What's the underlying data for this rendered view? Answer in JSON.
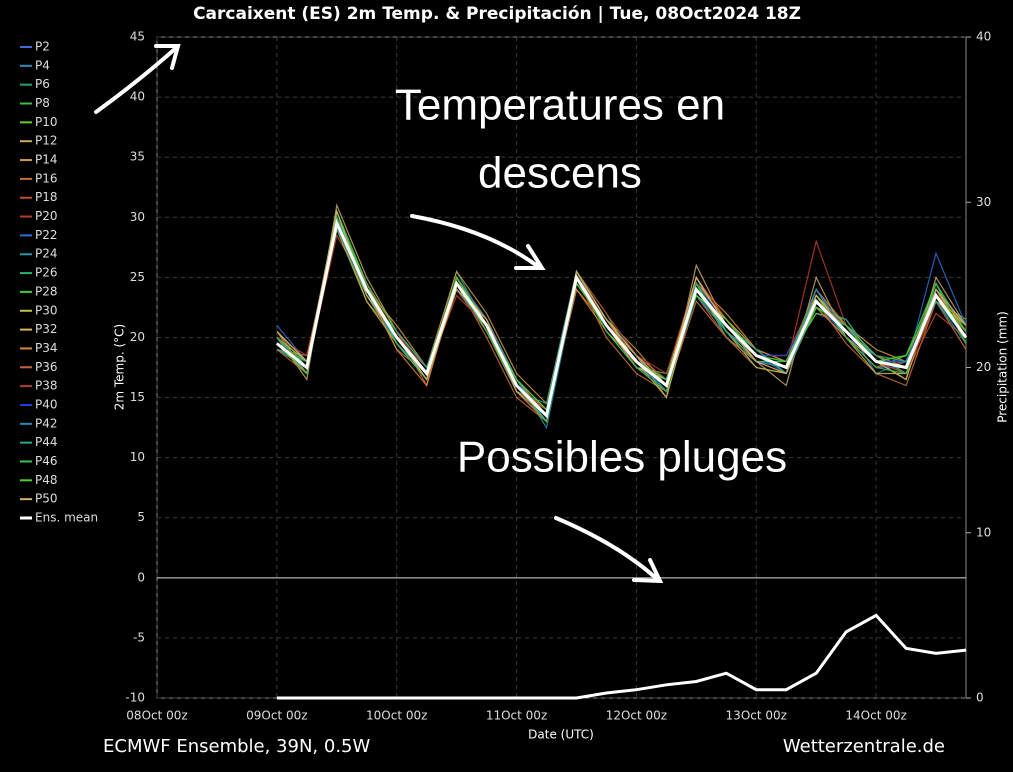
{
  "chart_data": {
    "type": "line",
    "title": "Carcaixent  (ES)  2m Temp. & Precipitación | Tue, 08Oct2024 18Z",
    "ylabel": "2m Temp. (°C)",
    "y2label": "Precipitation (mm)",
    "xlabel": "Date (UTC)",
    "footer_left": "ECMWF Ensemble, 39N, 0.5W",
    "footer_right": "Wetterzentrale.de",
    "annotations": [
      "Temperatures en",
      "descens",
      "Possibles pluges"
    ],
    "xlim": [
      0,
      162
    ],
    "xticks": [
      {
        "value": 0,
        "label": "08Oct 00z"
      },
      {
        "value": 24,
        "label": "09Oct 00z"
      },
      {
        "value": 48,
        "label": "10Oct 00z"
      },
      {
        "value": 72,
        "label": "11Oct 00z"
      },
      {
        "value": 96,
        "label": "12Oct 00z"
      },
      {
        "value": 120,
        "label": "13Oct 00z"
      },
      {
        "value": 144,
        "label": "14Oct 00z"
      }
    ],
    "ylim": [
      -10,
      45
    ],
    "yticks": [
      -10,
      -5,
      0,
      5,
      10,
      15,
      20,
      25,
      30,
      35,
      40,
      45
    ],
    "y2lim": [
      0,
      40
    ],
    "y2ticks": [
      0,
      10,
      20,
      30,
      40
    ],
    "grid": true,
    "x": [
      24,
      30,
      36,
      42,
      48,
      54,
      60,
      66,
      72,
      78,
      84,
      90,
      96,
      102,
      108,
      114,
      120,
      126,
      132,
      138,
      144,
      150,
      156,
      162
    ],
    "series": [
      {
        "name": "P2",
        "color": "#3b6fd6",
        "values": [
          20,
          17,
          30,
          24.5,
          19.5,
          16.5,
          25,
          21.5,
          15.5,
          13,
          25.5,
          21,
          17.5,
          16.5,
          24.5,
          20,
          18,
          18,
          22,
          21,
          17,
          18,
          24,
          21
        ]
      },
      {
        "name": "P4",
        "color": "#2e8bc0",
        "values": [
          19,
          18,
          29,
          23.5,
          20.5,
          17.5,
          24,
          20.5,
          16.5,
          14,
          24.5,
          21.5,
          18.5,
          15.5,
          23.5,
          21.5,
          19,
          17,
          24,
          20,
          18.5,
          17,
          23,
          20.5
        ]
      },
      {
        "name": "P6",
        "color": "#2aa07a",
        "values": [
          20.5,
          17.5,
          30.5,
          24,
          19,
          17,
          25.5,
          21,
          16,
          13.5,
          25,
          20.5,
          18,
          16,
          25,
          20.5,
          18,
          17.5,
          22.5,
          21,
          18,
          18,
          24.5,
          19.5
        ]
      },
      {
        "name": "P8",
        "color": "#3fbf3f",
        "values": [
          19.5,
          18,
          29.5,
          24.5,
          20,
          16.5,
          24.5,
          21.5,
          16.5,
          13,
          25.5,
          22,
          17.5,
          17,
          24,
          21,
          19,
          17,
          23.5,
          20,
          17.5,
          18.5,
          23,
          21.5
        ]
      },
      {
        "name": "P10",
        "color": "#66d11f",
        "values": [
          19,
          17.5,
          29,
          23.5,
          19.5,
          17,
          24,
          21,
          15.5,
          14,
          24.5,
          21,
          18,
          16.5,
          23.5,
          20.5,
          18.5,
          18,
          22,
          21.5,
          18,
          17,
          24,
          20
        ]
      },
      {
        "name": "P12",
        "color": "#c8a968",
        "values": [
          20,
          16.5,
          31,
          25,
          20.5,
          16,
          25,
          21,
          16,
          13.5,
          24,
          21,
          18.5,
          15,
          26,
          21,
          18,
          16,
          25,
          20,
          18,
          16.5,
          25,
          21
        ]
      },
      {
        "name": "P14",
        "color": "#d39a3c",
        "values": [
          20.5,
          17,
          30,
          24,
          21,
          17.5,
          25.5,
          22,
          17,
          14.5,
          25.5,
          21.5,
          19,
          16,
          24.5,
          22,
          19,
          18,
          24,
          21,
          19,
          18,
          24,
          20.5
        ]
      },
      {
        "name": "P16",
        "color": "#c9703a",
        "values": [
          19,
          18.5,
          29.5,
          23,
          20,
          16.5,
          24.5,
          20,
          15,
          13,
          25,
          20,
          17,
          15.5,
          23,
          20,
          17.5,
          17,
          23,
          19.5,
          17,
          16,
          23,
          19
        ]
      },
      {
        "name": "P18",
        "color": "#c24a2e",
        "values": [
          20,
          17.5,
          28.5,
          24,
          19,
          17,
          23.5,
          21,
          16.5,
          13.5,
          24,
          21,
          18,
          16.5,
          24,
          21,
          18.5,
          18.5,
          23.5,
          20.5,
          18.5,
          17,
          22,
          20
        ]
      },
      {
        "name": "P20",
        "color": "#b83a2a",
        "values": [
          19.5,
          17,
          29,
          24.5,
          20.5,
          16,
          25,
          21.5,
          15.5,
          14,
          25.5,
          22,
          18.5,
          17,
          25,
          21.5,
          18,
          17.5,
          28,
          21,
          18,
          17.5,
          23.5,
          20.5
        ]
      },
      {
        "name": "P22",
        "color": "#2f6fd0",
        "values": [
          21,
          18,
          30,
          24,
          20,
          17.5,
          24.5,
          20.5,
          16,
          13,
          25,
          21,
          17.5,
          16,
          24,
          20.5,
          18.5,
          17,
          23,
          20,
          17.5,
          17.5,
          27,
          21
        ]
      },
      {
        "name": "P24",
        "color": "#2796a6",
        "values": [
          19,
          17.5,
          30,
          23.5,
          19.5,
          17,
          24,
          21,
          16.5,
          12.5,
          24.5,
          21.5,
          18,
          15.5,
          23.5,
          21,
          19,
          18,
          22.5,
          21.5,
          18,
          18,
          23,
          19.5
        ]
      },
      {
        "name": "P26",
        "color": "#2bb36a",
        "values": [
          20,
          17,
          29.5,
          24,
          20,
          16.5,
          25,
          21,
          16,
          14,
          25,
          20.5,
          17.5,
          16.5,
          24.5,
          20,
          18,
          17.5,
          23,
          20.5,
          18.5,
          17,
          24,
          20
        ]
      },
      {
        "name": "P28",
        "color": "#3ccf3c",
        "values": [
          19.5,
          17.5,
          30.5,
          24.5,
          20.5,
          17.5,
          24.5,
          21.5,
          16.5,
          13.5,
          25.5,
          21,
          18.5,
          16,
          23.5,
          21.5,
          18.5,
          18,
          23.5,
          21,
          18,
          18.5,
          24.5,
          20.5
        ]
      },
      {
        "name": "P30",
        "color": "#bfc24a",
        "values": [
          20,
          18,
          29,
          23,
          19.5,
          16.5,
          25,
          20.5,
          15.5,
          13,
          24.5,
          21.5,
          18,
          15,
          24,
          20.5,
          17.5,
          17,
          22.5,
          20,
          17,
          17,
          23,
          21
        ]
      },
      {
        "name": "P32",
        "color": "#d8b45a",
        "values": [
          19.5,
          17,
          30,
          24.5,
          20,
          17,
          24,
          21,
          16,
          14,
          25,
          21,
          17.5,
          16.5,
          25,
          21,
          18.5,
          17.5,
          23,
          20.5,
          18,
          16.5,
          24,
          20
        ]
      },
      {
        "name": "P34",
        "color": "#d98a2f",
        "values": [
          20.5,
          18,
          29.5,
          24,
          19,
          16,
          24.5,
          21.5,
          16.5,
          13.5,
          24,
          20.5,
          18,
          16,
          24.5,
          21.5,
          19,
          18,
          23.5,
          21,
          18.5,
          17.5,
          23.5,
          21
        ]
      },
      {
        "name": "P36",
        "color": "#c9613a",
        "values": [
          19,
          17,
          30,
          23.5,
          20.5,
          17,
          25,
          21,
          15.5,
          13,
          25.5,
          21,
          18.5,
          16.5,
          23.5,
          20,
          18,
          17,
          22.5,
          20,
          17.5,
          18,
          24,
          19.5
        ]
      },
      {
        "name": "P38",
        "color": "#b3402e",
        "values": [
          20,
          18.5,
          29,
          24.5,
          20,
          17.5,
          24,
          20.5,
          16,
          14,
          25,
          21.5,
          17.5,
          15.5,
          24,
          21,
          18.5,
          18.5,
          23,
          21,
          18,
          17,
          23,
          20.5
        ]
      },
      {
        "name": "P40",
        "color": "#1f3fd8",
        "values": [
          19.5,
          17.5,
          29.5,
          24,
          20,
          17,
          24.5,
          21,
          16,
          13.5,
          25,
          21,
          18,
          16,
          24.5,
          21,
          18.5,
          18.5,
          23,
          20.5,
          18,
          18,
          23.5,
          20
        ]
      },
      {
        "name": "P42",
        "color": "#2a86b8",
        "values": [
          20,
          17,
          30,
          24,
          19.5,
          16.5,
          25,
          21.5,
          16.5,
          13,
          24.5,
          21,
          18,
          16.5,
          23.5,
          20.5,
          18,
          17.5,
          24,
          20.5,
          18,
          17.5,
          24,
          21
        ]
      },
      {
        "name": "P44",
        "color": "#28a88c",
        "values": [
          19,
          18,
          29,
          23.5,
          20.5,
          17.5,
          24,
          21,
          15.5,
          14.5,
          25.5,
          21.5,
          18.5,
          16,
          24,
          21,
          19,
          17,
          22.5,
          21,
          18.5,
          18,
          23,
          20
        ]
      },
      {
        "name": "P46",
        "color": "#34c34f",
        "values": [
          20,
          17.5,
          30,
          24.5,
          19.5,
          16.5,
          24.5,
          20.5,
          16,
          13,
          25,
          20.5,
          17.5,
          15.5,
          24.5,
          20.5,
          18,
          18,
          23.5,
          20,
          17.5,
          17,
          24.5,
          19.5
        ]
      },
      {
        "name": "P48",
        "color": "#4fd12a",
        "values": [
          19.5,
          17,
          29.5,
          24,
          20,
          17,
          25,
          21,
          16.5,
          14,
          24.5,
          21,
          18,
          16.5,
          23.5,
          21.5,
          18.5,
          17.5,
          22.5,
          21,
          18,
          18.5,
          23.5,
          20.5
        ]
      },
      {
        "name": "P50",
        "color": "#d4b36a",
        "values": [
          20.5,
          18,
          30.5,
          23.5,
          20,
          16.5,
          24,
          21.5,
          15.5,
          13.5,
          25.5,
          21.5,
          18.5,
          16,
          25,
          21,
          18,
          17,
          23.5,
          20.5,
          18,
          17.5,
          24,
          21
        ]
      },
      {
        "name": "Ens. mean",
        "color": "#ffffff",
        "values": [
          19.5,
          17.5,
          29.5,
          24,
          20,
          17,
          24.5,
          21,
          16,
          13.5,
          25,
          21,
          18,
          16,
          24,
          21,
          18.5,
          17.5,
          23,
          20.5,
          18,
          17.5,
          23.5,
          20
        ]
      },
      {
        "color": "#ffffff",
        "axis": "y2",
        "values": [
          0,
          0,
          0,
          0,
          0,
          0,
          0,
          0,
          0,
          0,
          0,
          0.3,
          0.5,
          0.8,
          1,
          1.5,
          0.5,
          0.5,
          1.5,
          4,
          5,
          3,
          2.7,
          2.9
        ]
      }
    ]
  }
}
